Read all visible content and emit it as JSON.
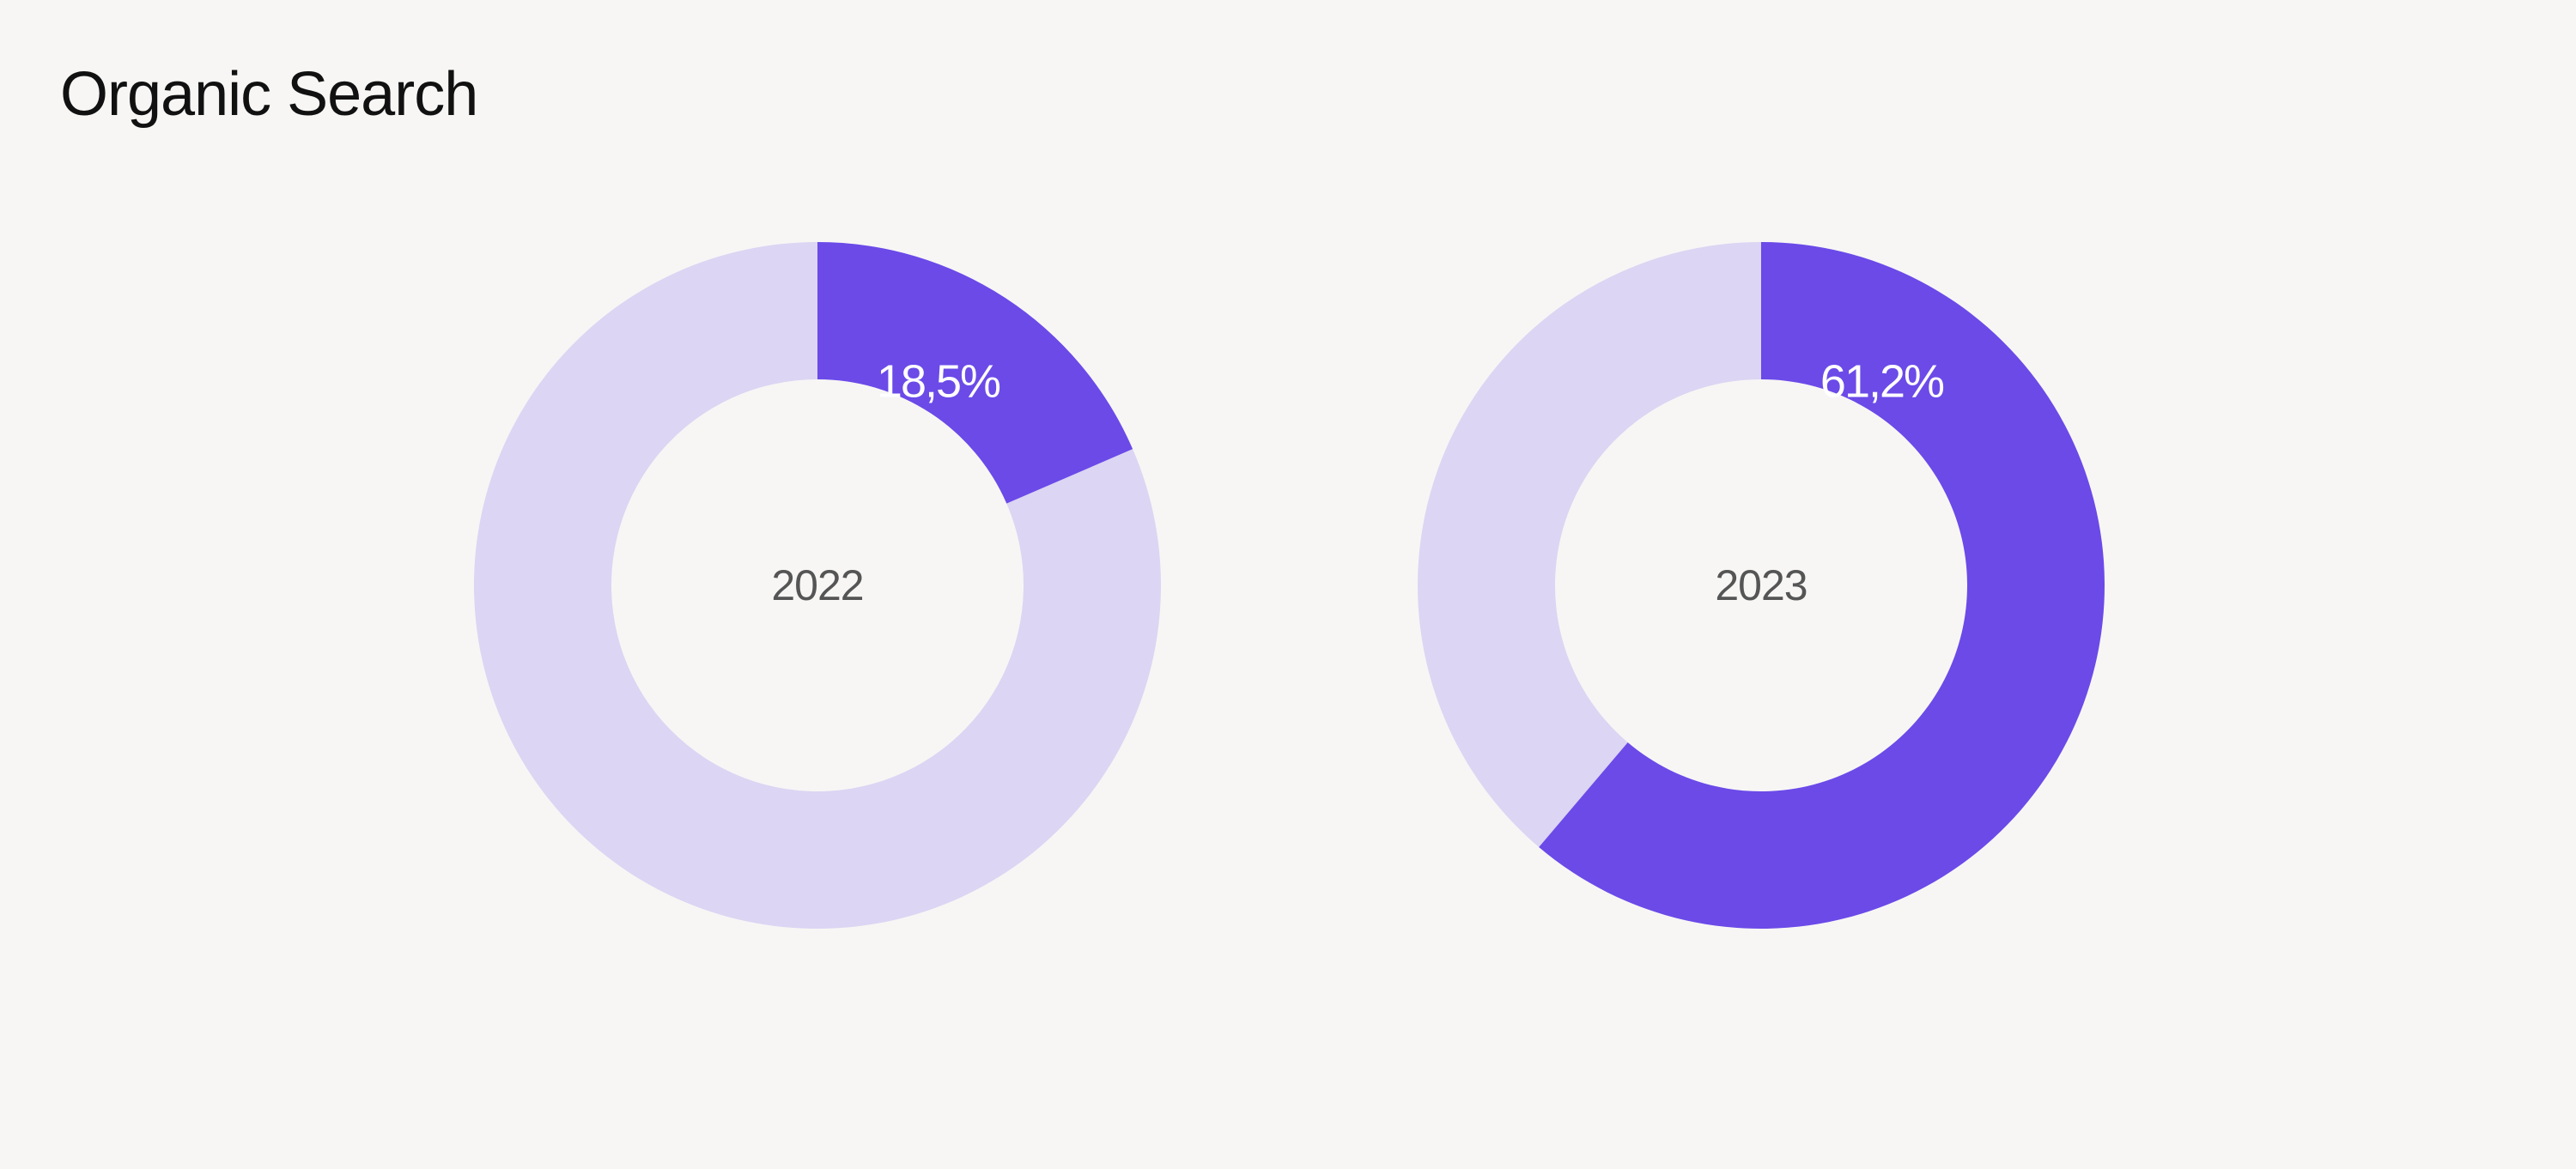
{
  "page": {
    "title": "Organic Search"
  },
  "colors": {
    "background": "#f7f6f5",
    "highlight": "#6b4ae8",
    "remainder": "#dcd5f3",
    "title_text": "#111111",
    "center_text": "#555555",
    "slice_text": "#ffffff"
  },
  "chart_data": [
    {
      "type": "pie",
      "variant": "donut",
      "center_label": "2022",
      "values": [
        18.5,
        81.5
      ],
      "labels": [
        "18,5%",
        ""
      ],
      "title": ""
    },
    {
      "type": "pie",
      "variant": "donut",
      "center_label": "2023",
      "values": [
        61.2,
        38.8
      ],
      "labels": [
        "61,2%",
        ""
      ],
      "title": ""
    }
  ]
}
